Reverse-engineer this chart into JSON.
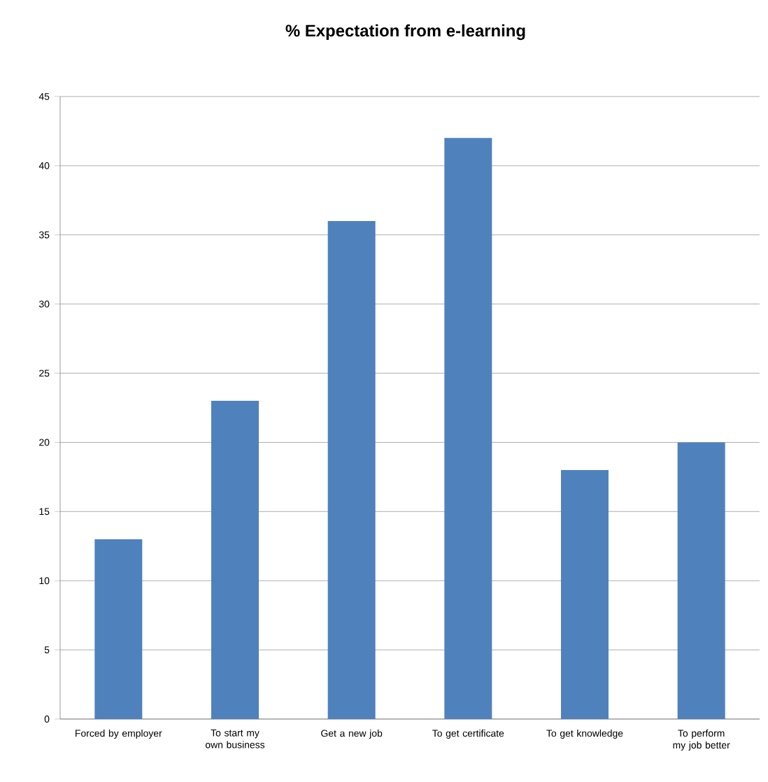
{
  "chart_data": {
    "type": "bar",
    "title": "% Expectation from e-learning",
    "categories": [
      "Forced by employer",
      "To start my own business",
      "Get a new job",
      "To get certificate",
      "To get knowledge",
      "To perform my job better"
    ],
    "values": [
      13,
      23,
      36,
      42,
      18,
      20
    ],
    "color": "#4f81bd",
    "ylim": [
      0,
      45
    ],
    "yticks": [
      0,
      5,
      10,
      15,
      20,
      25,
      30,
      35,
      40,
      45
    ],
    "grid": "y"
  }
}
